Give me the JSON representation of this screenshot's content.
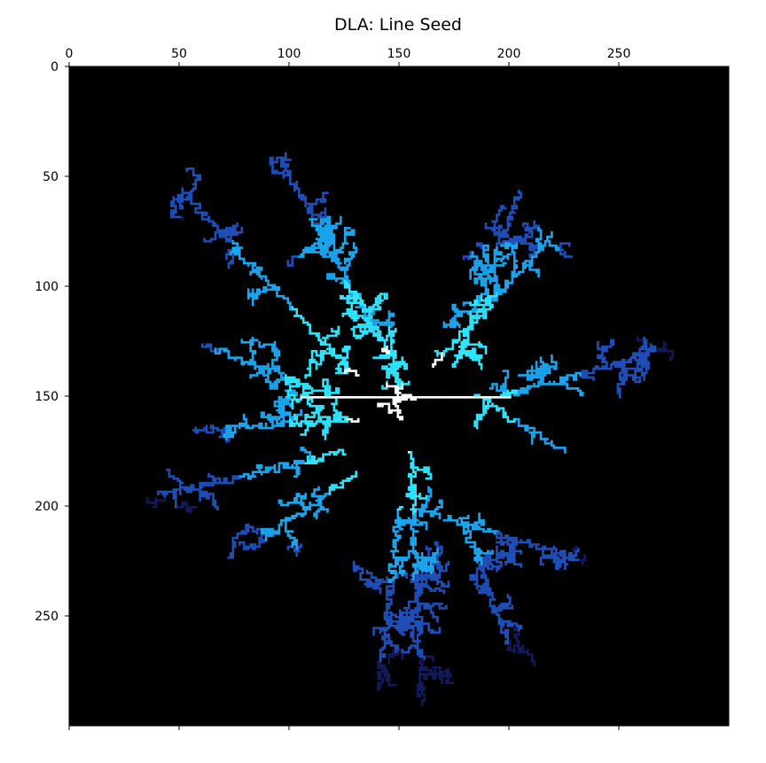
{
  "chart_data": {
    "type": "heatmap",
    "title": "DLA: Line Seed",
    "xlabel": "",
    "ylabel": "",
    "grid_size": [
      300,
      300
    ],
    "xlim": [
      0,
      300
    ],
    "ylim": [
      300,
      0
    ],
    "x_axis_position": "top",
    "x_ticks": [
      0,
      50,
      100,
      150,
      200,
      250
    ],
    "y_ticks": [
      0,
      50,
      100,
      150,
      200,
      250
    ],
    "x_tick_labels": [
      "0",
      "50",
      "100",
      "150",
      "200",
      "250"
    ],
    "y_tick_labels": [
      "0",
      "50",
      "100",
      "150",
      "200",
      "250"
    ],
    "grid": false,
    "colormap": [
      "#000000",
      "#121a5c",
      "#1f4fb8",
      "#1aa6f0",
      "#2ee6ff",
      "#ffffff"
    ],
    "background_color": "#000000",
    "seed": {
      "type": "line",
      "y": 150,
      "x_range": [
        105,
        200
      ]
    },
    "arms": [
      {
        "from": [
          145,
          130
        ],
        "to": [
          95,
          40
        ]
      },
      {
        "from": [
          130,
          140
        ],
        "to": [
          50,
          55
        ]
      },
      {
        "from": [
          120,
          150
        ],
        "to": [
          60,
          125
        ]
      },
      {
        "from": [
          130,
          160
        ],
        "to": [
          55,
          165
        ]
      },
      {
        "from": [
          125,
          175
        ],
        "to": [
          40,
          195
        ]
      },
      {
        "from": [
          130,
          185
        ],
        "to": [
          80,
          220
        ]
      },
      {
        "from": [
          155,
          175
        ],
        "to": [
          160,
          290
        ]
      },
      {
        "from": [
          150,
          200
        ],
        "to": [
          140,
          285
        ]
      },
      {
        "from": [
          170,
          205
        ],
        "to": [
          235,
          225
        ]
      },
      {
        "from": [
          180,
          210
        ],
        "to": [
          200,
          265
        ]
      },
      {
        "from": [
          185,
          150
        ],
        "to": [
          225,
          175
        ]
      },
      {
        "from": [
          195,
          150
        ],
        "to": [
          265,
          130
        ]
      },
      {
        "from": [
          175,
          135
        ],
        "to": [
          205,
          55
        ]
      },
      {
        "from": [
          165,
          135
        ],
        "to": [
          220,
          75
        ]
      },
      {
        "from": [
          150,
          160
        ],
        "to": [
          145,
          110
        ]
      }
    ]
  }
}
